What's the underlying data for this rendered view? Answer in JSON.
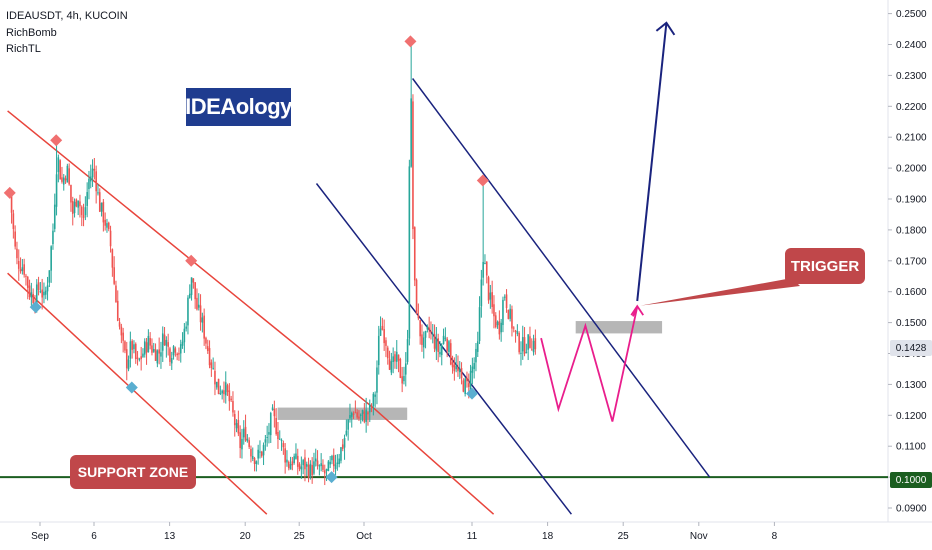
{
  "header": {
    "symbol_line": "IDEAUSDT, 4h, KUCOIN",
    "indicator1": "RichBomb",
    "indicator2": "RichTL"
  },
  "labels": {
    "logo": "IDEAology",
    "support_zone": "SUPPORT ZONE",
    "trigger": "TRIGGER",
    "last_price": "0.1428",
    "support_price": "0.1000"
  },
  "colors": {
    "up_candle": "#26a69a",
    "down_candle": "#ef5350",
    "channel_red": "#e8453c",
    "channel_blue": "#1a237e",
    "support_line": "#1b5e20",
    "projection": "#e91e8c",
    "zone_gray": "#9e9e9e",
    "marker_top": "#f07070",
    "marker_bottom": "#5aaed0",
    "label_bg": "#c0474a",
    "logo_bg": "#1f3c8f"
  },
  "chart_data": {
    "type": "candlestick",
    "symbol": "IDEAUSDT",
    "timeframe": "4h",
    "exchange": "KUCOIN",
    "ylim": [
      0.085,
      0.255
    ],
    "yticks": [
      "0.2500",
      "0.2400",
      "0.2300",
      "0.2200",
      "0.2100",
      "0.2000",
      "0.1900",
      "0.1800",
      "0.1700",
      "0.1600",
      "0.1500",
      "0.1400",
      "0.1300",
      "0.1200",
      "0.1100",
      "0.1000",
      "0.0900"
    ],
    "xticks": [
      {
        "label": "Sep",
        "day": 0
      },
      {
        "label": "6",
        "day": 5
      },
      {
        "label": "13",
        "day": 12
      },
      {
        "label": "20",
        "day": 19
      },
      {
        "label": "25",
        "day": 24
      },
      {
        "label": "Oct",
        "day": 30
      },
      {
        "label": "11",
        "day": 40
      },
      {
        "label": "18",
        "day": 47
      },
      {
        "label": "25",
        "day": 54
      },
      {
        "label": "Nov",
        "day": 61
      },
      {
        "label": "8",
        "day": 68
      }
    ],
    "xlim_days": [
      -3,
      70
    ],
    "price_path": [
      [
        -2.8,
        0.192
      ],
      [
        -2.2,
        0.17
      ],
      [
        -1.5,
        0.168
      ],
      [
        -1.0,
        0.16
      ],
      [
        -0.5,
        0.158
      ],
      [
        0.0,
        0.162
      ],
      [
        0.4,
        0.157
      ],
      [
        0.8,
        0.166
      ],
      [
        1.2,
        0.18
      ],
      [
        1.6,
        0.205
      ],
      [
        2.0,
        0.195
      ],
      [
        2.5,
        0.2
      ],
      [
        3.0,
        0.185
      ],
      [
        3.5,
        0.192
      ],
      [
        4.0,
        0.182
      ],
      [
        4.5,
        0.196
      ],
      [
        5.0,
        0.2
      ],
      [
        5.5,
        0.188
      ],
      [
        6.0,
        0.183
      ],
      [
        6.5,
        0.176
      ],
      [
        7.0,
        0.158
      ],
      [
        7.5,
        0.145
      ],
      [
        8.0,
        0.137
      ],
      [
        8.5,
        0.143
      ],
      [
        9.0,
        0.136
      ],
      [
        9.5,
        0.14
      ],
      [
        10.0,
        0.144
      ],
      [
        10.5,
        0.141
      ],
      [
        11.0,
        0.14
      ],
      [
        11.5,
        0.146
      ],
      [
        12.0,
        0.14
      ],
      [
        12.5,
        0.143
      ],
      [
        13.0,
        0.14
      ],
      [
        13.5,
        0.15
      ],
      [
        14.0,
        0.166
      ],
      [
        14.5,
        0.155
      ],
      [
        15.0,
        0.15
      ],
      [
        15.5,
        0.142
      ],
      [
        16.0,
        0.135
      ],
      [
        16.5,
        0.128
      ],
      [
        17.0,
        0.13
      ],
      [
        17.5,
        0.125
      ],
      [
        18.0,
        0.118
      ],
      [
        18.5,
        0.11
      ],
      [
        19.0,
        0.115
      ],
      [
        19.5,
        0.109
      ],
      [
        20.0,
        0.106
      ],
      [
        20.5,
        0.108
      ],
      [
        21.0,
        0.112
      ],
      [
        21.5,
        0.12
      ],
      [
        22.0,
        0.115
      ],
      [
        22.5,
        0.109
      ],
      [
        23.0,
        0.104
      ],
      [
        23.5,
        0.106
      ],
      [
        24.0,
        0.103
      ],
      [
        24.5,
        0.104
      ],
      [
        25.0,
        0.102
      ],
      [
        25.5,
        0.104
      ],
      [
        26.0,
        0.102
      ],
      [
        26.5,
        0.101
      ],
      [
        27.0,
        0.104
      ],
      [
        27.5,
        0.106
      ],
      [
        28.0,
        0.11
      ],
      [
        28.5,
        0.117
      ],
      [
        29.0,
        0.122
      ],
      [
        29.5,
        0.119
      ],
      [
        30.0,
        0.12
      ],
      [
        30.5,
        0.121
      ],
      [
        31.0,
        0.126
      ],
      [
        31.5,
        0.15
      ],
      [
        32.0,
        0.145
      ],
      [
        32.5,
        0.135
      ],
      [
        33.0,
        0.138
      ],
      [
        33.5,
        0.132
      ],
      [
        34.0,
        0.136
      ],
      [
        34.3,
        0.236
      ],
      [
        34.6,
        0.165
      ],
      [
        35.0,
        0.15
      ],
      [
        35.5,
        0.142
      ],
      [
        36.0,
        0.148
      ],
      [
        36.5,
        0.144
      ],
      [
        37.0,
        0.14
      ],
      [
        37.5,
        0.147
      ],
      [
        38.0,
        0.139
      ],
      [
        38.5,
        0.135
      ],
      [
        39.0,
        0.131
      ],
      [
        39.5,
        0.129
      ],
      [
        40.0,
        0.135
      ],
      [
        40.5,
        0.14
      ],
      [
        41.0,
        0.173
      ],
      [
        41.5,
        0.16
      ],
      [
        42.0,
        0.152
      ],
      [
        42.5,
        0.148
      ],
      [
        43.0,
        0.16
      ],
      [
        43.5,
        0.152
      ],
      [
        44.0,
        0.146
      ],
      [
        44.5,
        0.142
      ],
      [
        45.0,
        0.143
      ],
      [
        45.5,
        0.144
      ],
      [
        46.0,
        0.143
      ]
    ],
    "projection_path": [
      [
        46.4,
        0.145
      ],
      [
        48.0,
        0.122
      ],
      [
        50.5,
        0.149
      ],
      [
        53.0,
        0.118
      ],
      [
        55.3,
        0.155
      ],
      [
        54.9,
        0.152
      ]
    ],
    "breakout_arrow": [
      [
        55.3,
        0.157
      ],
      [
        58.0,
        0.247
      ]
    ],
    "zones": [
      {
        "name": "left-gray-zone",
        "x0": 22.0,
        "x1": 34.0,
        "y0": 0.1185,
        "y1": 0.1225
      },
      {
        "name": "right-gray-zone",
        "x0": 49.6,
        "x1": 57.6,
        "y0": 0.1465,
        "y1": 0.1505
      }
    ],
    "red_channel_upper": [
      [
        -3.0,
        0.2185
      ],
      [
        31.0,
        0.122
      ],
      [
        42.0,
        0.088
      ]
    ],
    "red_channel_lower": [
      [
        -3.0,
        0.166
      ],
      [
        21.0,
        0.088
      ]
    ],
    "blue_channel_upper": [
      [
        34.5,
        0.229
      ],
      [
        62.0,
        0.1
      ]
    ],
    "blue_channel_lower": [
      [
        25.6,
        0.195
      ],
      [
        49.2,
        0.088
      ]
    ],
    "support_level": 0.1,
    "markers_top": [
      [
        -2.8,
        0.192
      ],
      [
        1.5,
        0.209
      ],
      [
        14.0,
        0.17
      ],
      [
        34.3,
        0.241
      ],
      [
        41.0,
        0.196
      ]
    ],
    "markers_bottom": [
      [
        -0.4,
        0.155
      ],
      [
        8.5,
        0.129
      ],
      [
        27.0,
        0.1
      ],
      [
        40.0,
        0.127
      ]
    ]
  }
}
